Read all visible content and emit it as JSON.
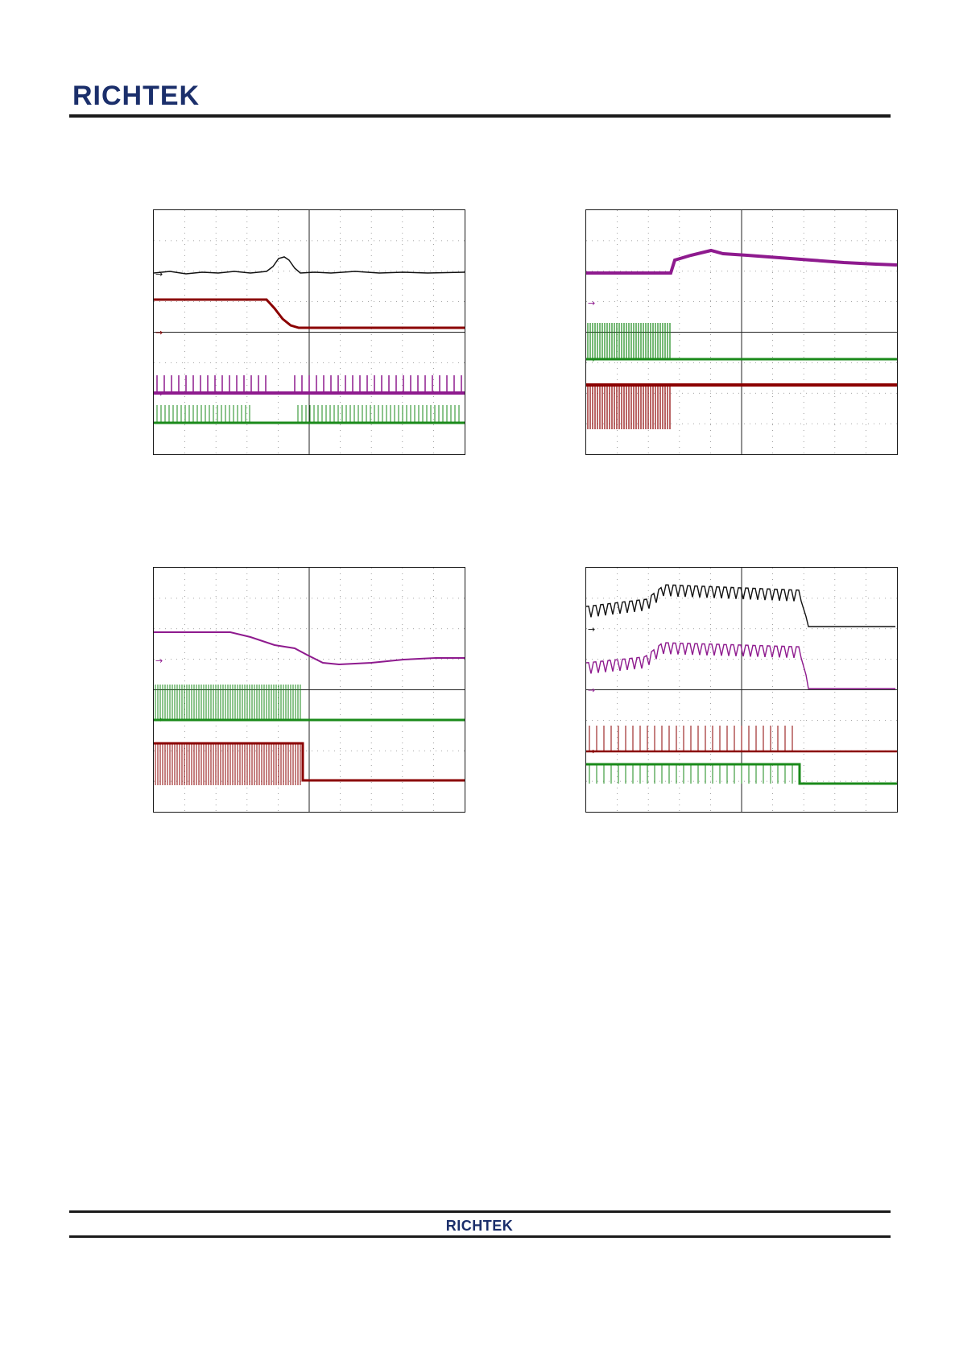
{
  "header": {
    "logo_text": "RICHTEK"
  },
  "footer": {
    "logo_text": "RICHTEK"
  },
  "colors": {
    "black": "#111111",
    "red": "#8b0000",
    "purple": "#8e1a8e",
    "green": "#1a8a1a",
    "brand": "#1b2f6b"
  },
  "scopes": [
    {
      "id": "scope-1",
      "markers": [
        {
          "channel": "black",
          "level": 0.26
        },
        {
          "channel": "red",
          "level": 0.5
        },
        {
          "channel": "purple",
          "level": 0.75
        },
        {
          "channel": "green",
          "level": 0.87
        }
      ]
    },
    {
      "id": "scope-2",
      "markers": [
        {
          "channel": "purple",
          "level": 0.38
        },
        {
          "channel": "green",
          "level": 0.61
        },
        {
          "channel": "red",
          "level": 0.88
        }
      ]
    },
    {
      "id": "scope-3",
      "markers": [
        {
          "channel": "purple",
          "level": 0.38
        },
        {
          "channel": "green",
          "level": 0.62
        },
        {
          "channel": "red",
          "level": 0.87
        }
      ]
    },
    {
      "id": "scope-4",
      "markers": [
        {
          "channel": "black",
          "level": 0.25
        },
        {
          "channel": "purple",
          "level": 0.5
        },
        {
          "channel": "red",
          "level": 0.75
        },
        {
          "channel": "green",
          "level": 0.88
        }
      ]
    }
  ]
}
